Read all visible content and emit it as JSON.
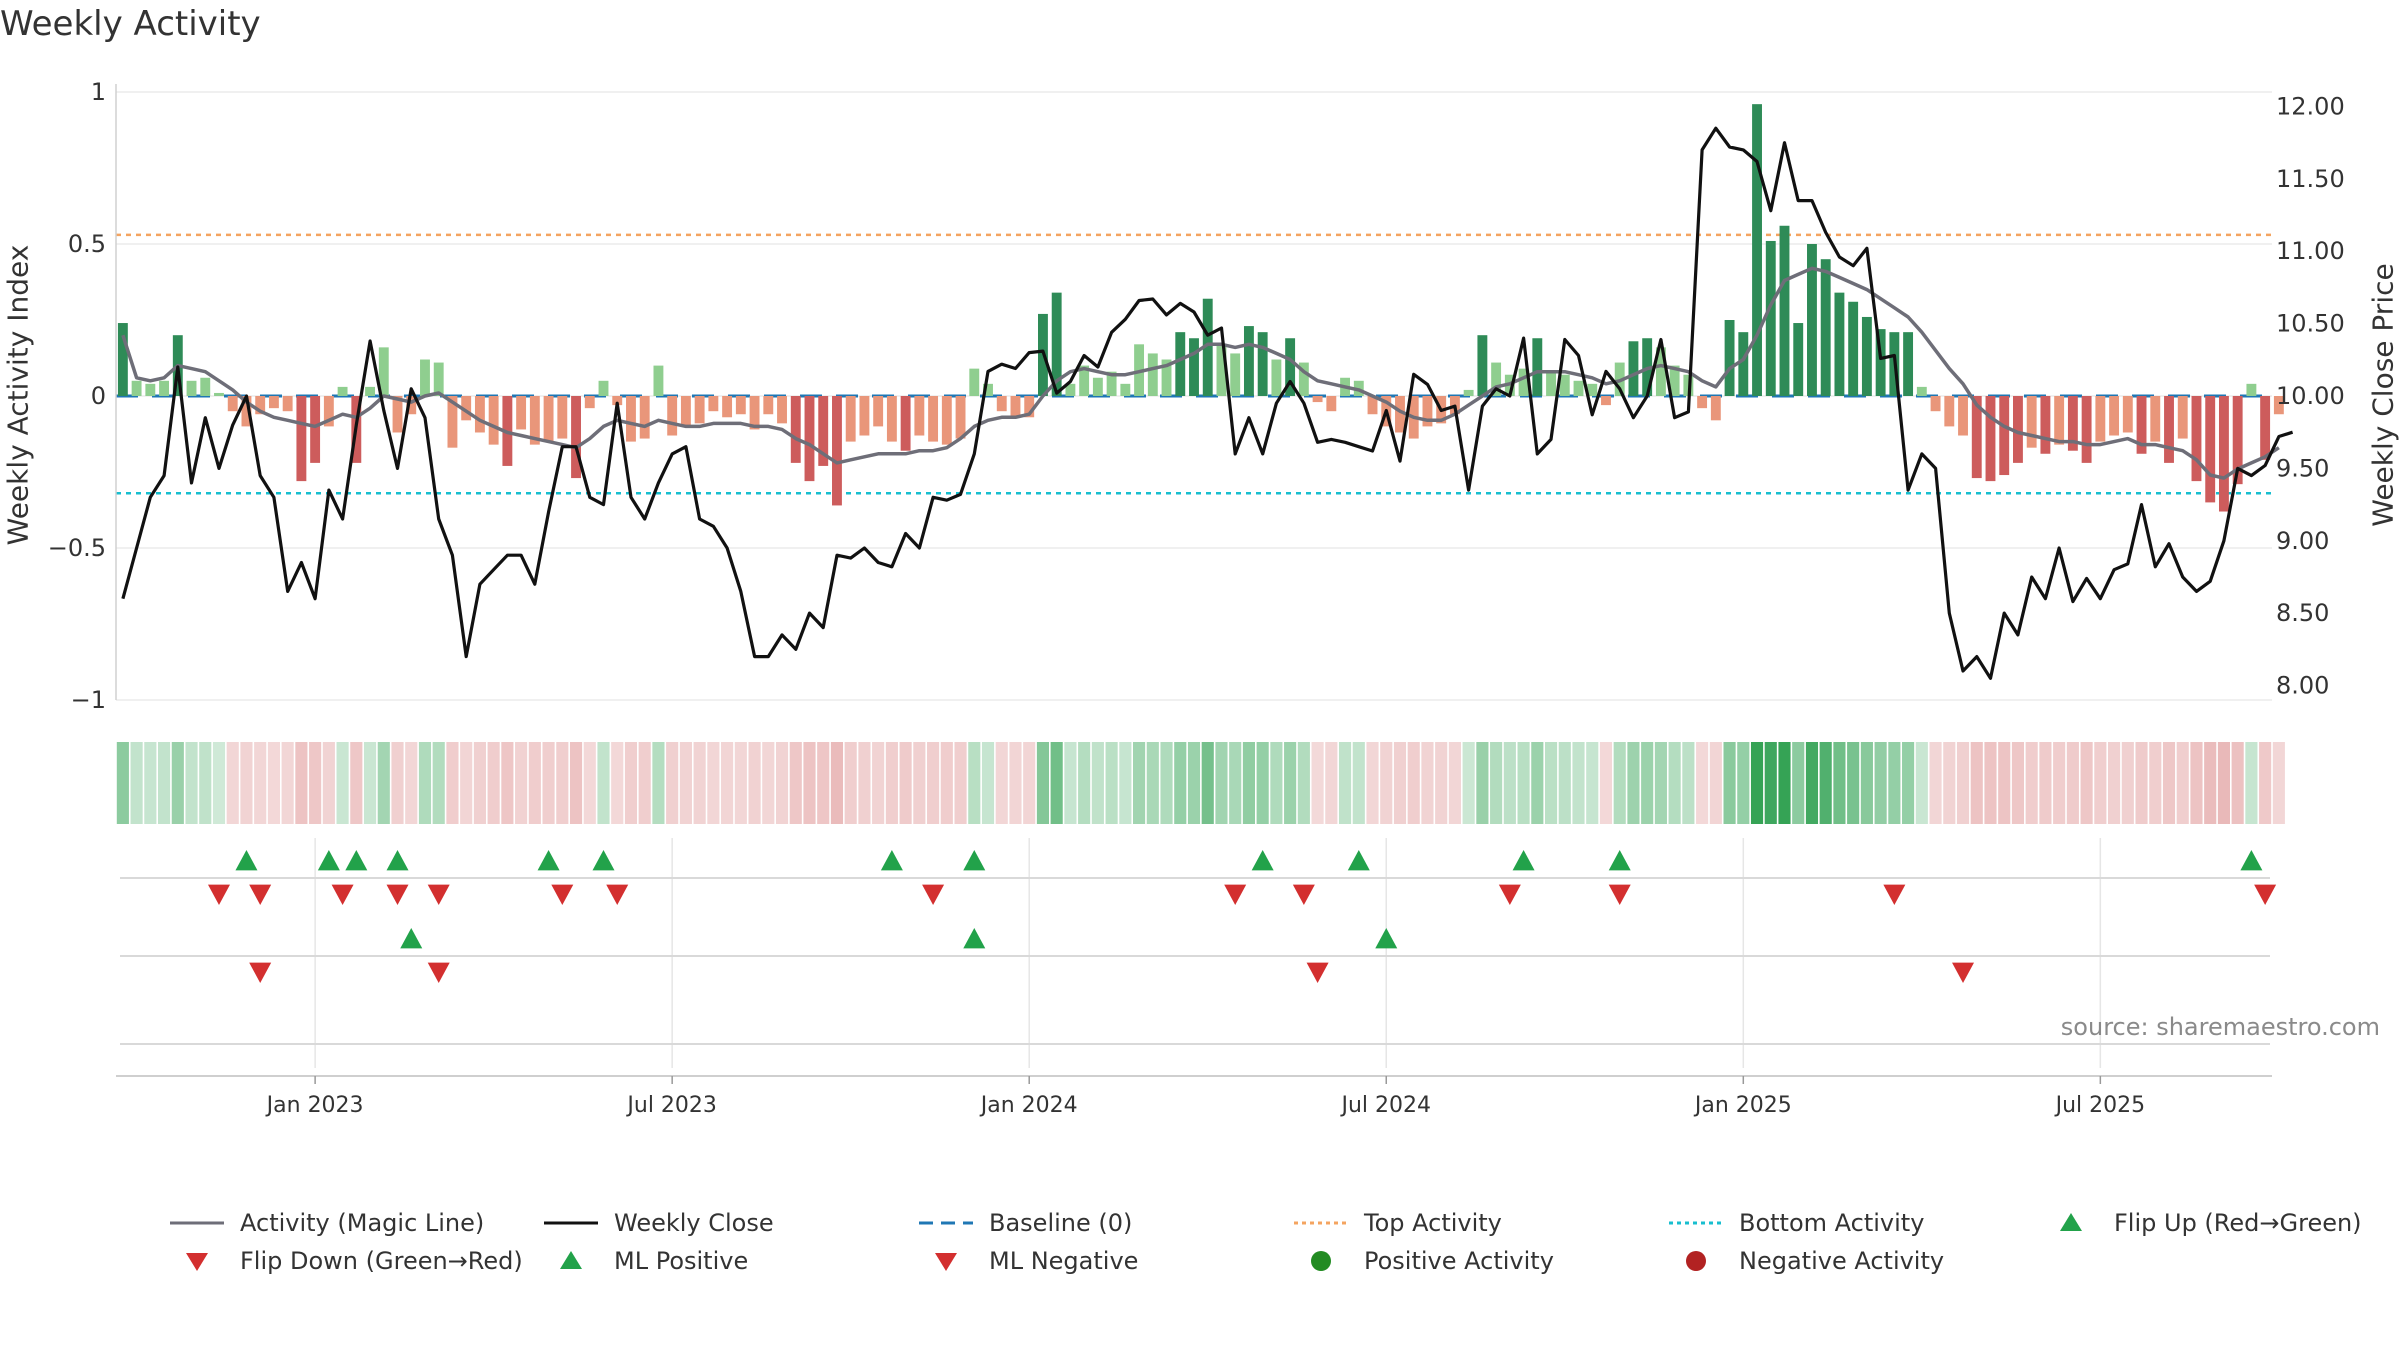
{
  "title": "Weekly Activity",
  "source": "source: sharemaestro.com",
  "colors": {
    "magic_line": "#6e6e78",
    "close": "#111111",
    "baseline": "#1f77b4",
    "top": "#f4a460",
    "bottom": "#17becf",
    "pos_strong": "#2e8b57",
    "pos_weak": "#8fce8f",
    "neg_strong": "#cd5c5c",
    "neg_weak": "#e9967a",
    "up_marker": "#22a24a",
    "down_marker": "#d32f2f",
    "pos_dot": "#228b22",
    "neg_dot": "#b22222"
  },
  "chart_data": {
    "type": "bar",
    "title": "Weekly Activity",
    "ylabel": "Weekly Activity Index",
    "y2label": "Weekly Close Price",
    "ylim": [
      -1,
      1
    ],
    "y2lim": [
      7.9,
      12.1
    ],
    "yticks": [
      "1",
      "0.5",
      "0",
      "−0.5",
      "−1"
    ],
    "yticks_values": [
      1,
      0.5,
      0,
      -0.5,
      -1
    ],
    "y2ticks": [
      "12.00",
      "11.50",
      "11.00",
      "10.50",
      "10.00",
      "9.50",
      "9.00",
      "8.50",
      "8.00"
    ],
    "y2ticks_values": [
      12,
      11.5,
      11,
      10.5,
      10,
      9.5,
      9,
      8.5,
      8
    ],
    "xticks": [
      "Jan 2023",
      "Jul 2023",
      "Jan 2024",
      "Jul 2024",
      "Jan 2025",
      "Jul 2025"
    ],
    "xticks_week": [
      14.5,
      40.5,
      66.5,
      92.5,
      118.5,
      144.5
    ],
    "weeks": 157,
    "top_activity": 0.53,
    "bottom_activity": -0.32,
    "activity": [
      0.24,
      0.05,
      0.04,
      0.05,
      0.2,
      0.05,
      0.06,
      0.01,
      -0.05,
      -0.1,
      -0.06,
      -0.04,
      -0.05,
      -0.28,
      -0.22,
      -0.1,
      0.03,
      -0.22,
      0.03,
      0.16,
      -0.12,
      -0.06,
      0.12,
      0.11,
      -0.17,
      -0.08,
      -0.12,
      -0.16,
      -0.23,
      -0.11,
      -0.16,
      -0.15,
      -0.14,
      -0.27,
      -0.04,
      0.05,
      -0.03,
      -0.15,
      -0.14,
      0.1,
      -0.13,
      -0.1,
      -0.09,
      -0.05,
      -0.07,
      -0.06,
      -0.11,
      -0.06,
      -0.09,
      -0.22,
      -0.28,
      -0.23,
      -0.36,
      -0.15,
      -0.13,
      -0.1,
      -0.15,
      -0.18,
      -0.13,
      -0.15,
      -0.16,
      -0.14,
      0.09,
      0.04,
      -0.05,
      -0.07,
      -0.07,
      0.27,
      0.34,
      0.04,
      0.1,
      0.06,
      0.08,
      0.04,
      0.17,
      0.14,
      0.12,
      0.21,
      0.19,
      0.32,
      0.17,
      0.14,
      0.23,
      0.21,
      0.12,
      0.19,
      0.11,
      -0.02,
      -0.05,
      0.06,
      0.05,
      -0.06,
      -0.1,
      -0.12,
      -0.14,
      -0.1,
      -0.09,
      -0.06,
      0.02,
      0.2,
      0.11,
      0.07,
      0.09,
      0.19,
      0.08,
      0.07,
      0.05,
      0.04,
      -0.03,
      0.11,
      0.18,
      0.19,
      0.16,
      0.1,
      0.07,
      -0.04,
      -0.08,
      0.25,
      0.21,
      0.96,
      0.51,
      0.56,
      0.24,
      0.5,
      0.45,
      0.34,
      0.31,
      0.26,
      0.22,
      0.21,
      0.21,
      0.03,
      -0.05,
      -0.1,
      -0.13,
      -0.27,
      -0.28,
      -0.26,
      -0.22,
      -0.17,
      -0.19,
      -0.16,
      -0.18,
      -0.22,
      -0.15,
      -0.13,
      -0.12,
      -0.19,
      -0.15,
      -0.22,
      -0.14,
      -0.28,
      -0.35,
      -0.38,
      -0.29,
      0.04,
      -0.21,
      -0.06
    ],
    "magic_line": [
      0.2,
      0.06,
      0.05,
      0.06,
      0.1,
      0.09,
      0.08,
      0.05,
      0.02,
      -0.02,
      -0.05,
      -0.07,
      -0.08,
      -0.09,
      -0.1,
      -0.08,
      -0.06,
      -0.07,
      -0.04,
      0.0,
      -0.01,
      -0.02,
      0.0,
      0.01,
      -0.02,
      -0.05,
      -0.08,
      -0.1,
      -0.12,
      -0.13,
      -0.14,
      -0.15,
      -0.16,
      -0.17,
      -0.14,
      -0.1,
      -0.08,
      -0.09,
      -0.1,
      -0.08,
      -0.09,
      -0.1,
      -0.1,
      -0.09,
      -0.09,
      -0.09,
      -0.1,
      -0.1,
      -0.11,
      -0.14,
      -0.16,
      -0.19,
      -0.22,
      -0.21,
      -0.2,
      -0.19,
      -0.19,
      -0.19,
      -0.18,
      -0.18,
      -0.17,
      -0.14,
      -0.1,
      -0.08,
      -0.07,
      -0.07,
      -0.06,
      0.0,
      0.05,
      0.08,
      0.09,
      0.08,
      0.07,
      0.07,
      0.08,
      0.09,
      0.1,
      0.12,
      0.14,
      0.17,
      0.17,
      0.16,
      0.17,
      0.16,
      0.14,
      0.12,
      0.08,
      0.05,
      0.04,
      0.03,
      0.02,
      0.0,
      -0.02,
      -0.05,
      -0.07,
      -0.08,
      -0.08,
      -0.06,
      -0.03,
      0.0,
      0.03,
      0.04,
      0.06,
      0.08,
      0.08,
      0.08,
      0.07,
      0.06,
      0.04,
      0.05,
      0.07,
      0.09,
      0.1,
      0.09,
      0.08,
      0.05,
      0.03,
      0.09,
      0.12,
      0.2,
      0.3,
      0.38,
      0.4,
      0.42,
      0.41,
      0.39,
      0.37,
      0.35,
      0.32,
      0.29,
      0.26,
      0.21,
      0.15,
      0.09,
      0.04,
      -0.03,
      -0.07,
      -0.1,
      -0.12,
      -0.13,
      -0.14,
      -0.15,
      -0.15,
      -0.16,
      -0.16,
      -0.15,
      -0.14,
      -0.16,
      -0.16,
      -0.17,
      -0.18,
      -0.21,
      -0.26,
      -0.27,
      -0.24,
      -0.22,
      -0.2,
      -0.17
    ],
    "close": [
      8.6,
      8.95,
      9.3,
      9.45,
      10.2,
      9.4,
      9.85,
      9.5,
      9.8,
      10.0,
      9.45,
      9.3,
      8.65,
      8.85,
      8.6,
      9.35,
      9.15,
      9.8,
      10.38,
      9.9,
      9.5,
      10.05,
      9.85,
      9.15,
      8.9,
      8.2,
      8.7,
      8.8,
      8.9,
      8.9,
      8.7,
      9.2,
      9.65,
      9.65,
      9.3,
      9.25,
      9.95,
      9.3,
      9.15,
      9.4,
      9.6,
      9.65,
      9.15,
      9.1,
      8.95,
      8.65,
      8.2,
      8.2,
      8.35,
      8.25,
      8.5,
      8.4,
      8.9,
      8.88,
      8.95,
      8.85,
      8.82,
      9.05,
      8.95,
      9.3,
      9.28,
      9.32,
      9.6,
      10.17,
      10.22,
      10.19,
      10.3,
      10.31,
      10.02,
      10.1,
      10.28,
      10.2,
      10.44,
      10.53,
      10.66,
      10.67,
      10.56,
      10.64,
      10.58,
      10.42,
      10.47,
      9.6,
      9.85,
      9.6,
      9.95,
      10.1,
      9.95,
      9.68,
      9.7,
      9.68,
      9.65,
      9.62,
      9.9,
      9.55,
      10.15,
      10.08,
      9.9,
      9.93,
      9.35,
      9.93,
      10.05,
      10.0,
      10.4,
      9.6,
      9.7,
      10.39,
      10.28,
      9.87,
      10.17,
      10.05,
      9.85,
      10.0,
      10.39,
      9.85,
      9.89,
      11.7,
      11.85,
      11.72,
      11.7,
      11.62,
      11.28,
      11.75,
      11.35,
      11.35,
      11.13,
      10.96,
      10.9,
      11.02,
      10.26,
      10.28,
      9.35,
      9.6,
      9.5,
      8.5,
      8.1,
      8.2,
      8.05,
      8.5,
      8.35,
      8.75,
      8.6,
      8.95,
      8.58,
      8.74,
      8.6,
      8.8,
      8.84,
      9.25,
      8.82,
      8.98,
      8.75,
      8.65,
      8.72,
      9.0,
      9.5,
      9.45,
      9.52,
      9.72,
      9.75
    ]
  },
  "strip_labels": [],
  "flip_up_weeks": [
    9,
    15,
    17,
    20,
    31,
    35,
    56,
    62,
    83,
    90,
    102,
    109,
    155
  ],
  "flip_down_weeks": [
    7,
    10,
    16,
    20,
    23,
    32,
    36,
    59,
    81,
    86,
    101,
    109,
    129,
    156
  ],
  "ml_positive_weeks": [
    21,
    62,
    92
  ],
  "ml_negative_weeks": [
    10,
    23,
    87,
    134
  ],
  "legend": {
    "magic_line": "Activity (Magic Line)",
    "close": "Weekly Close",
    "baseline": "Baseline (0)",
    "top": "Top Activity",
    "bottom": "Bottom Activity",
    "flip_up": "Flip Up (Red→Green)",
    "flip_down": "Flip Down (Green→Red)",
    "ml_positive": "ML Positive",
    "ml_negative": "ML Negative",
    "pos_activity": "Positive Activity",
    "neg_activity": "Negative Activity"
  }
}
